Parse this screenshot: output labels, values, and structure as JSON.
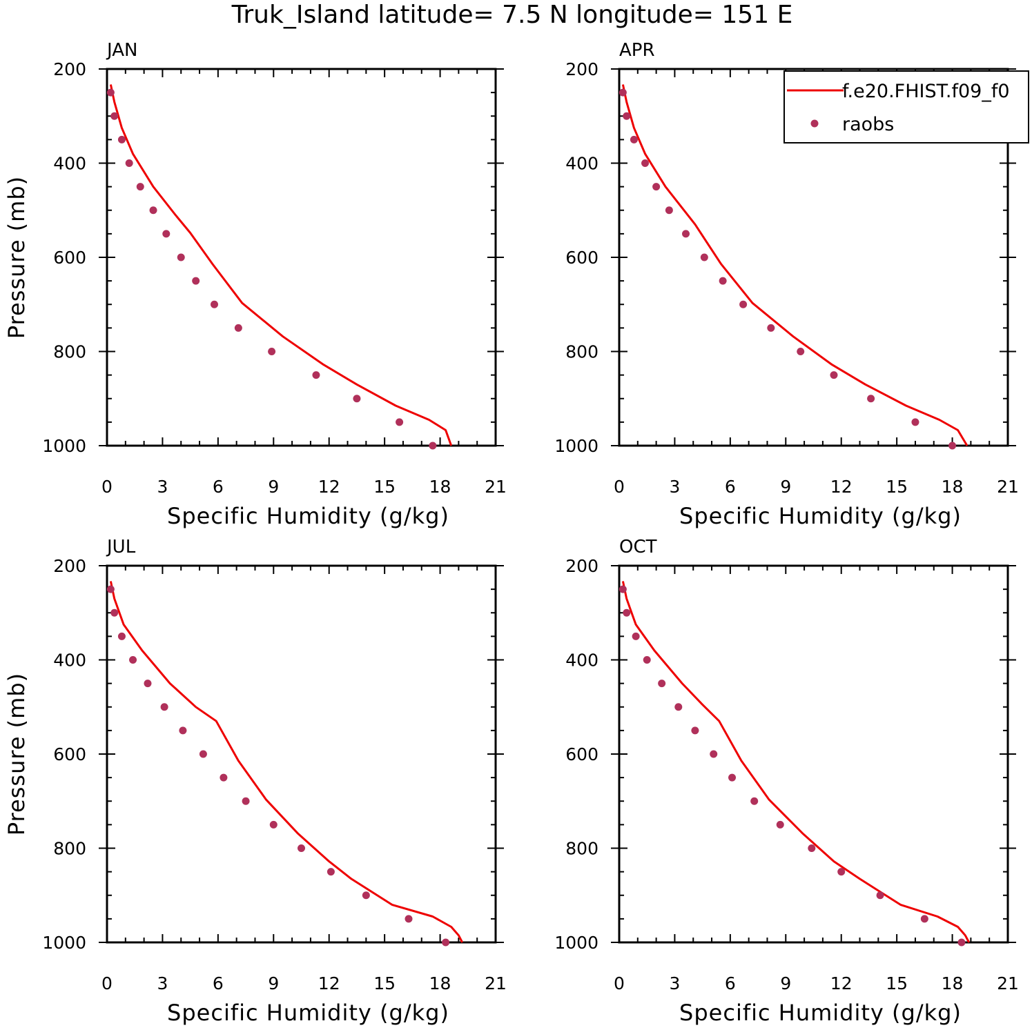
{
  "title": "Truk_Island  latitude= 7.5 N longitude= 151 E",
  "colors": {
    "model": "#ee0000",
    "obs": "#b0305a",
    "axis": "#000000"
  },
  "legend": {
    "entries": [
      {
        "label": "f.e20.FHIST.f09_f0",
        "marker": "line",
        "color": "#ee0000"
      },
      {
        "label": "raobs",
        "marker": "dot",
        "color": "#b0305a"
      }
    ]
  },
  "chart_data": [
    {
      "type": "line",
      "panel_label": "JAN",
      "xlabel": "Specific Humidity (g/kg)",
      "ylabel": "Pressure (mb)",
      "xlim": [
        0,
        21
      ],
      "ylim": [
        200,
        1000
      ],
      "y_inverted": true,
      "xticks": [
        "0",
        "3",
        "6",
        "9",
        "12",
        "15",
        "18",
        "21"
      ],
      "yticks": [
        "200",
        "400",
        "600",
        "800",
        "1000"
      ],
      "series": [
        {
          "name": "f.e20.FHIST.f09_f0",
          "kind": "line",
          "x": [
            0.2,
            0.4,
            0.8,
            1.4,
            2.5,
            3.7,
            4.5,
            5.7,
            7.3,
            9.5,
            11.7,
            13.5,
            15.6,
            17.4,
            18.3,
            18.6
          ],
          "y": [
            233,
            270,
            325,
            380,
            450,
            510,
            548,
            614,
            697,
            768,
            828,
            870,
            915,
            945,
            967,
            1000
          ]
        },
        {
          "name": "raobs",
          "kind": "scatter",
          "x": [
            0.2,
            0.4,
            0.8,
            1.2,
            1.8,
            2.5,
            3.2,
            4.0,
            4.8,
            5.8,
            7.1,
            8.9,
            11.3,
            13.5,
            15.8,
            17.6
          ],
          "y": [
            250,
            300,
            350,
            400,
            450,
            500,
            550,
            600,
            650,
            700,
            750,
            800,
            850,
            900,
            950,
            1000
          ]
        }
      ]
    },
    {
      "type": "line",
      "panel_label": "APR",
      "xlabel": "Specific Humidity (g/kg)",
      "ylabel": "",
      "xlim": [
        0,
        21
      ],
      "ylim": [
        200,
        1000
      ],
      "y_inverted": true,
      "xticks": [
        "0",
        "3",
        "6",
        "9",
        "12",
        "15",
        "18",
        "21"
      ],
      "yticks": [
        "200",
        "400",
        "600",
        "800",
        "1000"
      ],
      "series": [
        {
          "name": "f.e20.FHIST.f09_f0",
          "kind": "line",
          "x": [
            0.2,
            0.4,
            0.8,
            1.4,
            2.5,
            3.7,
            4.1,
            5.5,
            7.2,
            9.4,
            11.5,
            13.3,
            15.5,
            17.3,
            18.3,
            18.8
          ],
          "y": [
            233,
            270,
            325,
            380,
            450,
            510,
            530,
            614,
            697,
            768,
            828,
            870,
            915,
            945,
            967,
            1000
          ]
        },
        {
          "name": "raobs",
          "kind": "scatter",
          "x": [
            0.2,
            0.4,
            0.8,
            1.4,
            2.0,
            2.7,
            3.6,
            4.6,
            5.6,
            6.7,
            8.2,
            9.8,
            11.6,
            13.6,
            16.0,
            18.0
          ],
          "y": [
            250,
            300,
            350,
            400,
            450,
            500,
            550,
            600,
            650,
            700,
            750,
            800,
            850,
            900,
            950,
            1000
          ]
        }
      ]
    },
    {
      "type": "line",
      "panel_label": "JUL",
      "xlabel": "Specific Humidity (g/kg)",
      "ylabel": "Pressure (mb)",
      "xlim": [
        0,
        21
      ],
      "ylim": [
        200,
        1000
      ],
      "y_inverted": true,
      "xticks": [
        "0",
        "3",
        "6",
        "9",
        "12",
        "15",
        "18",
        "21"
      ],
      "yticks": [
        "200",
        "400",
        "600",
        "800",
        "1000"
      ],
      "series": [
        {
          "name": "f.e20.FHIST.f09_f0",
          "kind": "line",
          "x": [
            0.2,
            0.4,
            0.9,
            1.9,
            3.4,
            4.8,
            5.9,
            7.1,
            8.6,
            10.3,
            12.0,
            13.2,
            15.4,
            17.6,
            18.6,
            19.0,
            19.2
          ],
          "y": [
            233,
            270,
            325,
            380,
            450,
            500,
            530,
            614,
            697,
            768,
            828,
            865,
            920,
            945,
            967,
            985,
            1000
          ]
        },
        {
          "name": "raobs",
          "kind": "scatter",
          "x": [
            0.2,
            0.4,
            0.8,
            1.4,
            2.2,
            3.1,
            4.1,
            5.2,
            6.3,
            7.5,
            9.0,
            10.5,
            12.1,
            14.0,
            16.3,
            18.3
          ],
          "y": [
            250,
            300,
            350,
            400,
            450,
            500,
            550,
            600,
            650,
            700,
            750,
            800,
            850,
            900,
            950,
            1000
          ]
        }
      ]
    },
    {
      "type": "line",
      "panel_label": "OCT",
      "xlabel": "Specific Humidity (g/kg)",
      "ylabel": "",
      "xlim": [
        0,
        21
      ],
      "ylim": [
        200,
        1000
      ],
      "y_inverted": true,
      "xticks": [
        "0",
        "3",
        "6",
        "9",
        "12",
        "15",
        "18",
        "21"
      ],
      "yticks": [
        "200",
        "400",
        "600",
        "800",
        "1000"
      ],
      "series": [
        {
          "name": "f.e20.FHIST.f09_f0",
          "kind": "line",
          "x": [
            0.2,
            0.4,
            0.9,
            1.9,
            3.4,
            4.5,
            5.4,
            6.6,
            8.1,
            9.9,
            11.6,
            13.0,
            15.2,
            17.2,
            18.3,
            18.7,
            18.9
          ],
          "y": [
            233,
            270,
            325,
            380,
            450,
            495,
            530,
            614,
            697,
            768,
            828,
            865,
            920,
            945,
            967,
            985,
            1000
          ]
        },
        {
          "name": "raobs",
          "kind": "scatter",
          "x": [
            0.2,
            0.4,
            0.9,
            1.5,
            2.3,
            3.2,
            4.1,
            5.1,
            6.1,
            7.3,
            8.7,
            10.4,
            12.0,
            14.1,
            16.5,
            18.5
          ],
          "y": [
            250,
            300,
            350,
            400,
            450,
            500,
            550,
            600,
            650,
            700,
            750,
            800,
            850,
            900,
            950,
            1000
          ]
        }
      ]
    }
  ]
}
